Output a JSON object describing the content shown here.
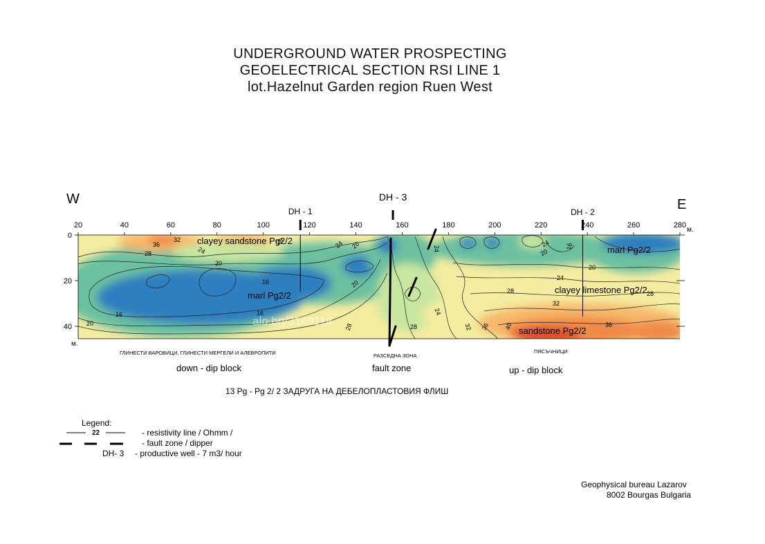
{
  "title": {
    "line1": "UNDERGROUND WATER  PROSPECTING",
    "line2": "GEOELECTRICAL  SECTION  RSI   LINE  1",
    "line3": "lot.Hazelnut Garden    region Ruen West"
  },
  "directions": {
    "west": "W",
    "east": "E"
  },
  "wells": [
    {
      "label": "DH - 1",
      "x_m": 116
    },
    {
      "label": "DH - 3",
      "x_m": 156
    },
    {
      "label": "DH - 2",
      "x_m": 238
    }
  ],
  "axis": {
    "x_ticks": [
      "20",
      "40",
      "60",
      "80",
      "100",
      "120",
      "140",
      "160",
      "180",
      "200",
      "220",
      "240",
      "260",
      "280"
    ],
    "x_unit": "м.",
    "y_ticks": [
      "0",
      "20",
      "40"
    ],
    "y_unit": "м."
  },
  "colors": {
    "scale_16": "#2f7fbf",
    "scale_20": "#6cc0a0",
    "scale_24": "#c7e6a0",
    "scale_28": "#f4eca0",
    "scale_32": "#f6b86a",
    "scale_36": "#f08a48",
    "scale_40": "#e04a26"
  },
  "contour_labels": [
    "36",
    "28",
    "32",
    "24",
    "20",
    "16",
    "16",
    "20",
    "16",
    "20",
    "28",
    "24",
    "20",
    "28",
    "24",
    "24",
    "28",
    "32",
    "36",
    "40",
    "20",
    "24",
    "20",
    "24",
    "16",
    "28",
    "32",
    "36",
    "28"
  ],
  "formation_labels": {
    "clayey_sandstone": "clayey sandstone  Pg2/2",
    "marl_west": "marl  Pg2/2",
    "marl_east": "marl  Pg2/2",
    "clayey_limestone": "clayey limestone  Pg2/2",
    "sandstone": "sandstone  Pg2/2"
  },
  "russian_labels": {
    "west": "ГЛИНЕСТИ ВАРОВИЦИ,  ГЛИНЕСТИ МЕРГЕЛИ И АЛЕВРОПИТИ",
    "center": "РАЗСЕДНА  ЗОНА",
    "east": "ПЯСЪЧНИЦИ"
  },
  "blocks": {
    "west": "down - dip  block",
    "center": "fault  zone",
    "east": "up - dip  block"
  },
  "formation_note": "13 Pg   -  Pg 2/ 2  ЗАДРУГА   НА  ДЕБЕЛОПЛАСТОВИЯ ФЛИШ",
  "watermark": "alo.bg/3149118",
  "legend": {
    "heading": "Legend:",
    "line_value": "22",
    "line_text": "- resistivity line / Ohmm /",
    "fault_text": "- fault zone / dipper",
    "well_label": "DH- 3",
    "well_text": "- productive well - 7 m3/ hour"
  },
  "footer": {
    "line1": "Geophysical  bureau   Lazarov",
    "line2": "8002 Bourgas    Bulgaria"
  }
}
